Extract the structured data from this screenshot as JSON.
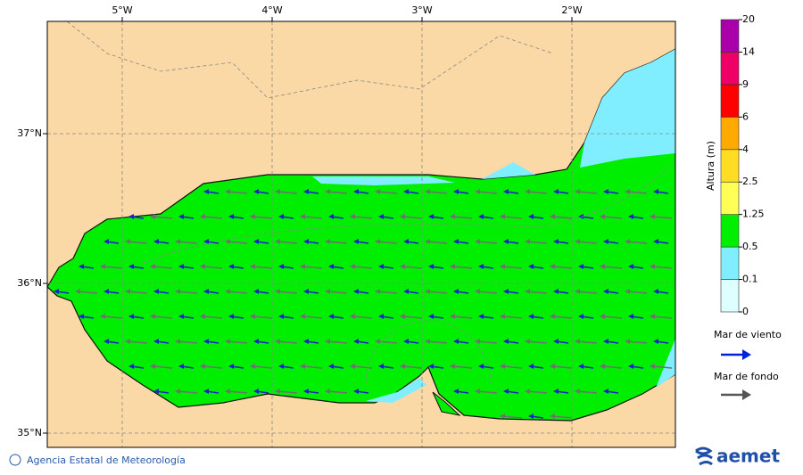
{
  "map": {
    "lon_labels": [
      "5°W",
      "4°W",
      "3°W",
      "2°W"
    ],
    "lat_labels": [
      "37°N",
      "36°N",
      "35°N"
    ]
  },
  "legend": {
    "title": "Altura (m)",
    "ticks": [
      "0",
      "0.1",
      "0.5",
      "1.25",
      "2.5",
      "4",
      "6",
      "9",
      "14",
      "20"
    ],
    "colors": [
      "#ddffff",
      "#80eeff",
      "#00ee00",
      "#ffff55",
      "#ffdd22",
      "#ffaa00",
      "#ff0000",
      "#ee0066",
      "#aa00aa"
    ],
    "wind_sea": "Mar de viento",
    "swell": "Mar de fondo"
  },
  "footer": {
    "agency": "Agencia Estatal de Meteorología",
    "logo": "aemet"
  }
}
